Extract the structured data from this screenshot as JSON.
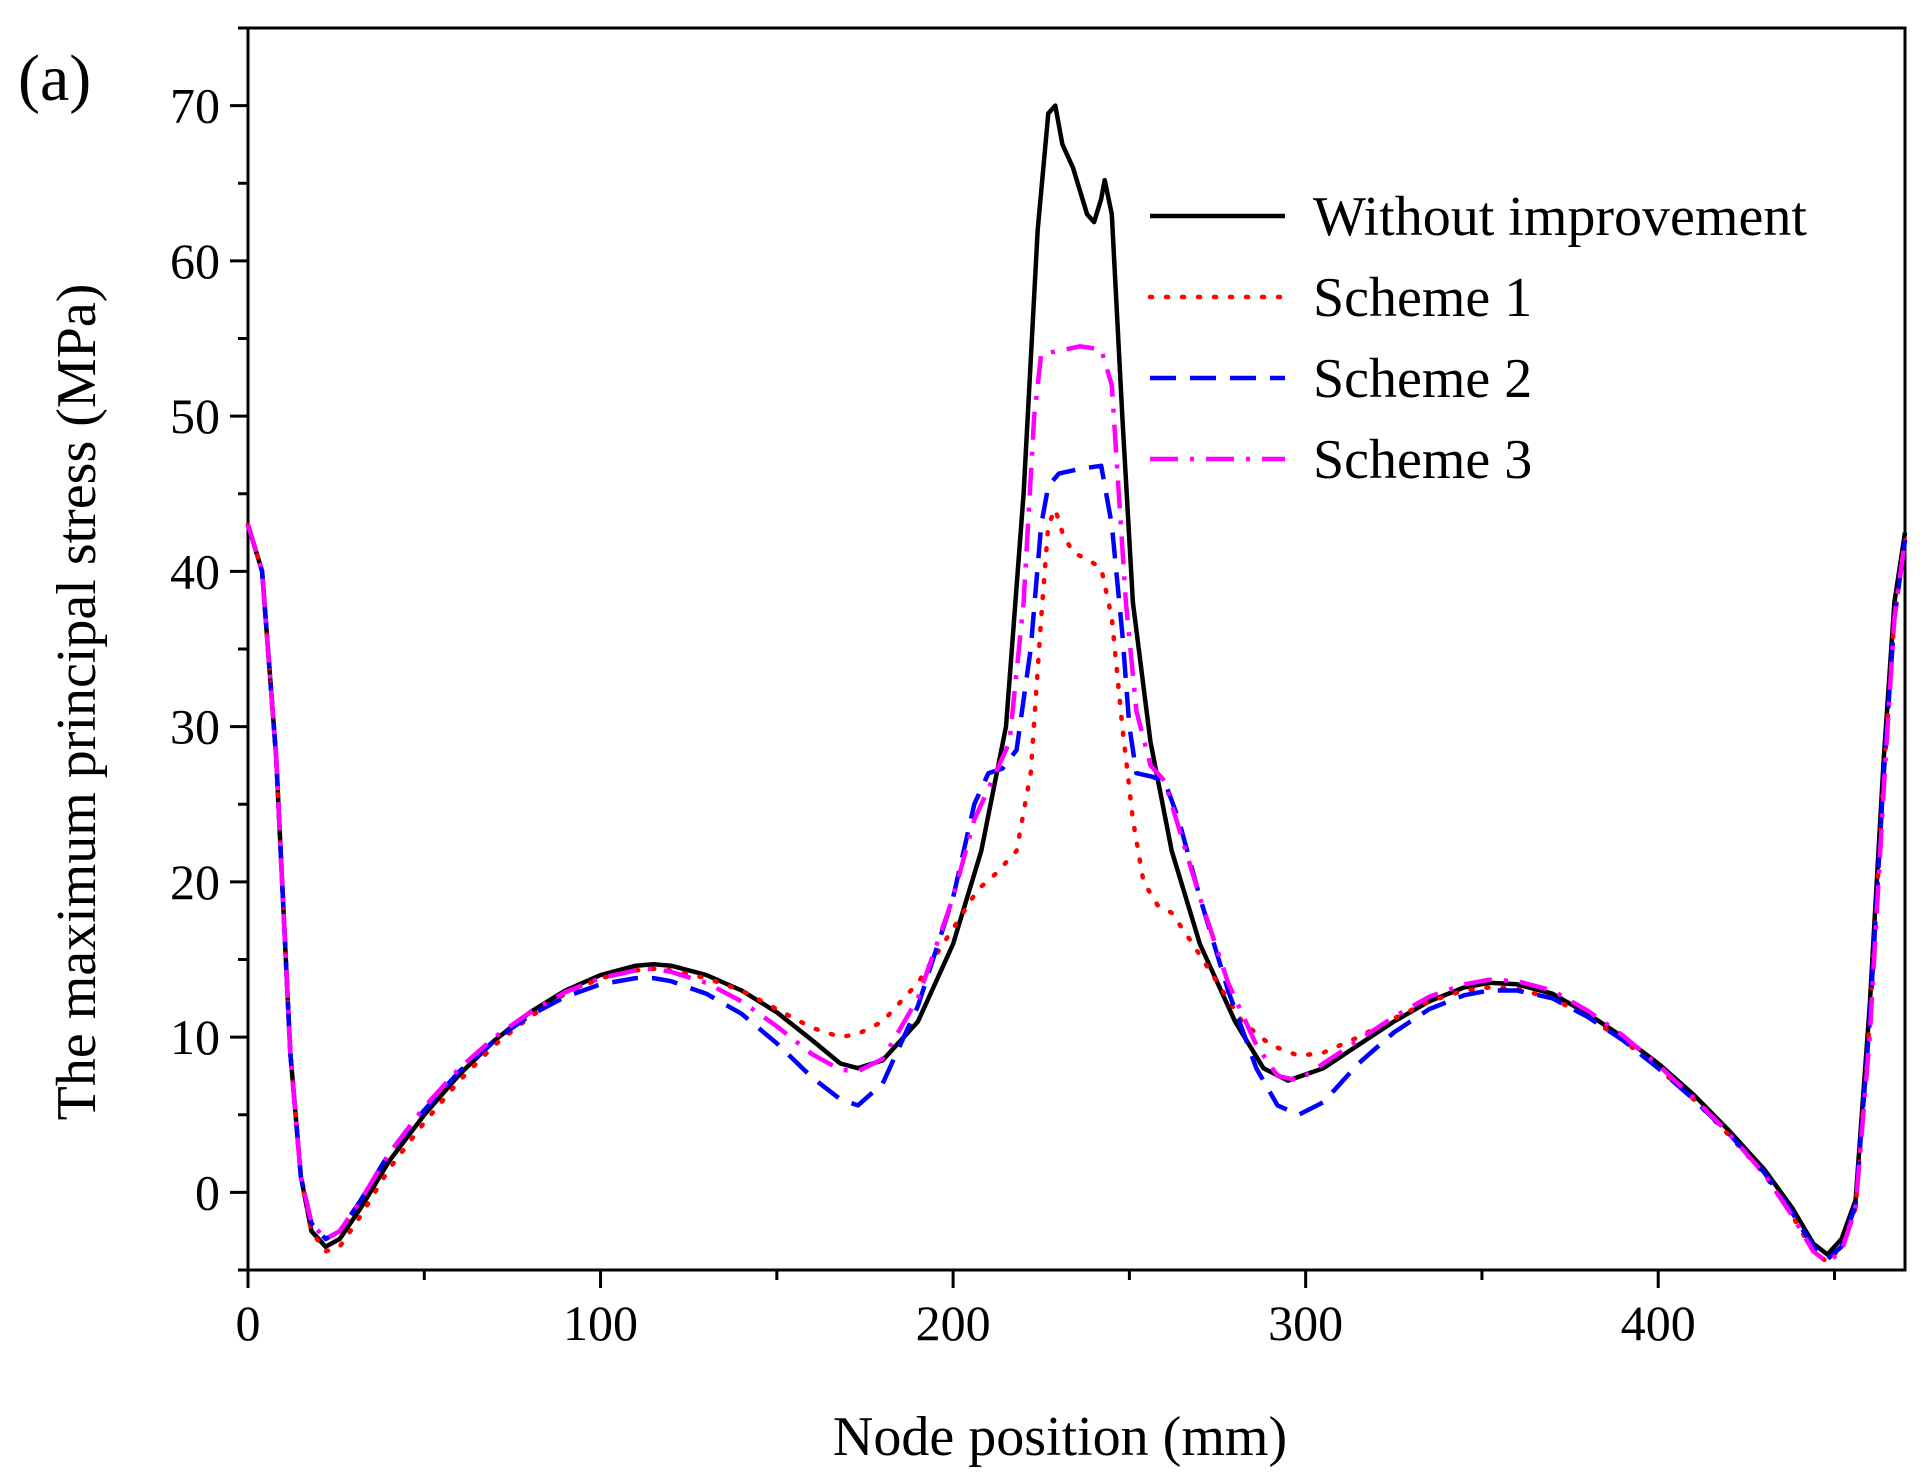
{
  "panel_label": "(a)",
  "chart_data": {
    "type": "line",
    "title": "",
    "xlabel": "Node position (mm)",
    "ylabel": "The  maximum principal stress (MPa)",
    "xlim": [
      0,
      470
    ],
    "ylim": [
      -5,
      75
    ],
    "x_ticks": [
      0,
      100,
      200,
      300,
      400
    ],
    "y_ticks": [
      0,
      10,
      20,
      30,
      40,
      50,
      60,
      70
    ],
    "grid": false,
    "legend_position": "top-right",
    "series": [
      {
        "name": "Without improvement",
        "color": "#000000",
        "dash": "solid",
        "points": [
          [
            0,
            43
          ],
          [
            4,
            40
          ],
          [
            8,
            28
          ],
          [
            12,
            9
          ],
          [
            15,
            1
          ],
          [
            18,
            -2.5
          ],
          [
            22,
            -3.5
          ],
          [
            26,
            -3
          ],
          [
            32,
            -1
          ],
          [
            40,
            2
          ],
          [
            50,
            5
          ],
          [
            60,
            7.6
          ],
          [
            70,
            9.8
          ],
          [
            80,
            11.6
          ],
          [
            90,
            13
          ],
          [
            100,
            14
          ],
          [
            110,
            14.6
          ],
          [
            115,
            14.7
          ],
          [
            120,
            14.6
          ],
          [
            130,
            14
          ],
          [
            140,
            13
          ],
          [
            150,
            11.6
          ],
          [
            160,
            9.8
          ],
          [
            168,
            8.3
          ],
          [
            173,
            8
          ],
          [
            180,
            8.5
          ],
          [
            190,
            11
          ],
          [
            200,
            16
          ],
          [
            208,
            22
          ],
          [
            215,
            30
          ],
          [
            220,
            45
          ],
          [
            224,
            62
          ],
          [
            227,
            69.5
          ],
          [
            229,
            70
          ],
          [
            231,
            67.5
          ],
          [
            234,
            66
          ],
          [
            238,
            63
          ],
          [
            240,
            62.5
          ],
          [
            242,
            64
          ],
          [
            243,
            65.2
          ],
          [
            245,
            63
          ],
          [
            248,
            50
          ],
          [
            251,
            38
          ],
          [
            256,
            29
          ],
          [
            262,
            22
          ],
          [
            270,
            16
          ],
          [
            280,
            11
          ],
          [
            288,
            8
          ],
          [
            295,
            7.2
          ],
          [
            305,
            8
          ],
          [
            315,
            9.5
          ],
          [
            325,
            11
          ],
          [
            335,
            12.3
          ],
          [
            345,
            13.2
          ],
          [
            352,
            13.5
          ],
          [
            360,
            13.4
          ],
          [
            370,
            12.8
          ],
          [
            380,
            11.5
          ],
          [
            390,
            10
          ],
          [
            400,
            8.3
          ],
          [
            410,
            6.3
          ],
          [
            420,
            4
          ],
          [
            430,
            1.5
          ],
          [
            438,
            -1
          ],
          [
            444,
            -3.3
          ],
          [
            448,
            -4
          ],
          [
            452,
            -3
          ],
          [
            456,
            -0.5
          ],
          [
            460,
            12
          ],
          [
            464,
            28
          ],
          [
            467,
            38
          ],
          [
            470,
            42.5
          ]
        ]
      },
      {
        "name": "Scheme 1",
        "color": "#ff0000",
        "dash": "dotted",
        "points": [
          [
            0,
            43
          ],
          [
            4,
            40
          ],
          [
            8,
            28
          ],
          [
            12,
            9
          ],
          [
            15,
            1
          ],
          [
            18,
            -2.5
          ],
          [
            22,
            -3.8
          ],
          [
            26,
            -3.5
          ],
          [
            32,
            -1.5
          ],
          [
            40,
            1.5
          ],
          [
            50,
            4.5
          ],
          [
            60,
            7.2
          ],
          [
            70,
            9.5
          ],
          [
            80,
            11.3
          ],
          [
            90,
            12.8
          ],
          [
            100,
            13.8
          ],
          [
            110,
            14.3
          ],
          [
            115,
            14.4
          ],
          [
            120,
            14.3
          ],
          [
            130,
            13.8
          ],
          [
            140,
            13
          ],
          [
            150,
            11.8
          ],
          [
            160,
            10.6
          ],
          [
            168,
            10
          ],
          [
            173,
            10.2
          ],
          [
            180,
            11
          ],
          [
            190,
            13.5
          ],
          [
            200,
            17
          ],
          [
            207,
            19.5
          ],
          [
            212,
            20.5
          ],
          [
            218,
            22
          ],
          [
            222,
            27
          ],
          [
            225,
            37
          ],
          [
            227,
            43
          ],
          [
            229,
            44
          ],
          [
            231,
            42.5
          ],
          [
            234,
            41.2
          ],
          [
            238,
            40.8
          ],
          [
            242,
            40.2
          ],
          [
            245,
            37
          ],
          [
            248,
            30
          ],
          [
            251,
            24
          ],
          [
            254,
            20
          ],
          [
            258,
            18.5
          ],
          [
            262,
            18
          ],
          [
            268,
            16
          ],
          [
            275,
            13.5
          ],
          [
            282,
            11
          ],
          [
            290,
            9.5
          ],
          [
            298,
            8.8
          ],
          [
            305,
            9
          ],
          [
            315,
            10
          ],
          [
            325,
            11.2
          ],
          [
            335,
            12.3
          ],
          [
            345,
            13
          ],
          [
            352,
            13.2
          ],
          [
            360,
            13.1
          ],
          [
            370,
            12.5
          ],
          [
            380,
            11.3
          ],
          [
            390,
            9.8
          ],
          [
            400,
            8
          ],
          [
            410,
            6
          ],
          [
            420,
            3.7
          ],
          [
            430,
            1.2
          ],
          [
            438,
            -1.5
          ],
          [
            444,
            -3.8
          ],
          [
            448,
            -4.5
          ],
          [
            452,
            -3.5
          ],
          [
            456,
            -1
          ],
          [
            460,
            11
          ],
          [
            464,
            27
          ],
          [
            467,
            37
          ],
          [
            470,
            42
          ]
        ]
      },
      {
        "name": "Scheme 2",
        "color": "#0000ff",
        "dash": "dashed",
        "points": [
          [
            0,
            43
          ],
          [
            4,
            40
          ],
          [
            8,
            28
          ],
          [
            12,
            9
          ],
          [
            15,
            1
          ],
          [
            18,
            -2
          ],
          [
            22,
            -3
          ],
          [
            26,
            -2.5
          ],
          [
            32,
            -0.5
          ],
          [
            40,
            2.5
          ],
          [
            50,
            5.3
          ],
          [
            60,
            7.8
          ],
          [
            70,
            9.8
          ],
          [
            80,
            11.4
          ],
          [
            90,
            12.6
          ],
          [
            100,
            13.4
          ],
          [
            110,
            13.8
          ],
          [
            115,
            13.8
          ],
          [
            120,
            13.6
          ],
          [
            130,
            12.8
          ],
          [
            140,
            11.5
          ],
          [
            150,
            9.6
          ],
          [
            160,
            7.4
          ],
          [
            168,
            6
          ],
          [
            173,
            5.6
          ],
          [
            180,
            7
          ],
          [
            190,
            12
          ],
          [
            200,
            19
          ],
          [
            206,
            25
          ],
          [
            210,
            27
          ],
          [
            214,
            27.3
          ],
          [
            218,
            28.5
          ],
          [
            222,
            35
          ],
          [
            225,
            43
          ],
          [
            227,
            45.5
          ],
          [
            230,
            46.3
          ],
          [
            236,
            46.6
          ],
          [
            242,
            46.8
          ],
          [
            245,
            43
          ],
          [
            248,
            36
          ],
          [
            250,
            30
          ],
          [
            252,
            27
          ],
          [
            256,
            26.8
          ],
          [
            260,
            26.5
          ],
          [
            264,
            24
          ],
          [
            270,
            19
          ],
          [
            278,
            13
          ],
          [
            286,
            8
          ],
          [
            292,
            5.6
          ],
          [
            298,
            5
          ],
          [
            305,
            5.8
          ],
          [
            315,
            8.3
          ],
          [
            325,
            10.3
          ],
          [
            335,
            11.8
          ],
          [
            345,
            12.7
          ],
          [
            352,
            13
          ],
          [
            360,
            13
          ],
          [
            370,
            12.5
          ],
          [
            380,
            11.3
          ],
          [
            390,
            9.8
          ],
          [
            400,
            8
          ],
          [
            410,
            6
          ],
          [
            420,
            3.8
          ],
          [
            430,
            1.3
          ],
          [
            438,
            -1.3
          ],
          [
            444,
            -3.5
          ],
          [
            448,
            -4.3
          ],
          [
            452,
            -3.5
          ],
          [
            456,
            -0.8
          ],
          [
            460,
            11
          ],
          [
            464,
            27
          ],
          [
            467,
            37
          ],
          [
            470,
            42
          ]
        ]
      },
      {
        "name": "Scheme 3",
        "color": "#ff00ff",
        "dash": "dashdot",
        "points": [
          [
            0,
            43
          ],
          [
            4,
            40
          ],
          [
            8,
            28
          ],
          [
            12,
            9
          ],
          [
            15,
            1
          ],
          [
            18,
            -2
          ],
          [
            22,
            -3
          ],
          [
            26,
            -2.5
          ],
          [
            32,
            -0.5
          ],
          [
            40,
            2.5
          ],
          [
            50,
            5.5
          ],
          [
            60,
            8
          ],
          [
            70,
            10
          ],
          [
            80,
            11.6
          ],
          [
            90,
            12.9
          ],
          [
            100,
            13.8
          ],
          [
            110,
            14.3
          ],
          [
            115,
            14.4
          ],
          [
            120,
            14.2
          ],
          [
            130,
            13.5
          ],
          [
            140,
            12.3
          ],
          [
            150,
            10.7
          ],
          [
            160,
            8.9
          ],
          [
            168,
            7.9
          ],
          [
            173,
            7.8
          ],
          [
            180,
            8.6
          ],
          [
            190,
            12.5
          ],
          [
            200,
            19
          ],
          [
            206,
            24
          ],
          [
            212,
            27
          ],
          [
            216,
            29
          ],
          [
            220,
            38
          ],
          [
            223,
            50
          ],
          [
            225,
            54
          ],
          [
            230,
            54.2
          ],
          [
            236,
            54.5
          ],
          [
            242,
            54.3
          ],
          [
            245,
            52
          ],
          [
            247,
            45
          ],
          [
            249,
            38
          ],
          [
            252,
            31
          ],
          [
            256,
            27.5
          ],
          [
            260,
            26.5
          ],
          [
            264,
            23.5
          ],
          [
            270,
            19
          ],
          [
            278,
            13.5
          ],
          [
            286,
            9.5
          ],
          [
            292,
            7.5
          ],
          [
            298,
            7.2
          ],
          [
            305,
            8.3
          ],
          [
            315,
            9.8
          ],
          [
            325,
            11.3
          ],
          [
            335,
            12.6
          ],
          [
            345,
            13.4
          ],
          [
            352,
            13.7
          ],
          [
            360,
            13.6
          ],
          [
            370,
            13
          ],
          [
            380,
            11.7
          ],
          [
            390,
            10.1
          ],
          [
            400,
            8.2
          ],
          [
            410,
            6.1
          ],
          [
            420,
            3.8
          ],
          [
            430,
            1.2
          ],
          [
            438,
            -1.5
          ],
          [
            444,
            -3.8
          ],
          [
            448,
            -4.5
          ],
          [
            452,
            -3.8
          ],
          [
            456,
            -1
          ],
          [
            460,
            10
          ],
          [
            464,
            26
          ],
          [
            467,
            37
          ],
          [
            470,
            42
          ]
        ]
      }
    ]
  }
}
